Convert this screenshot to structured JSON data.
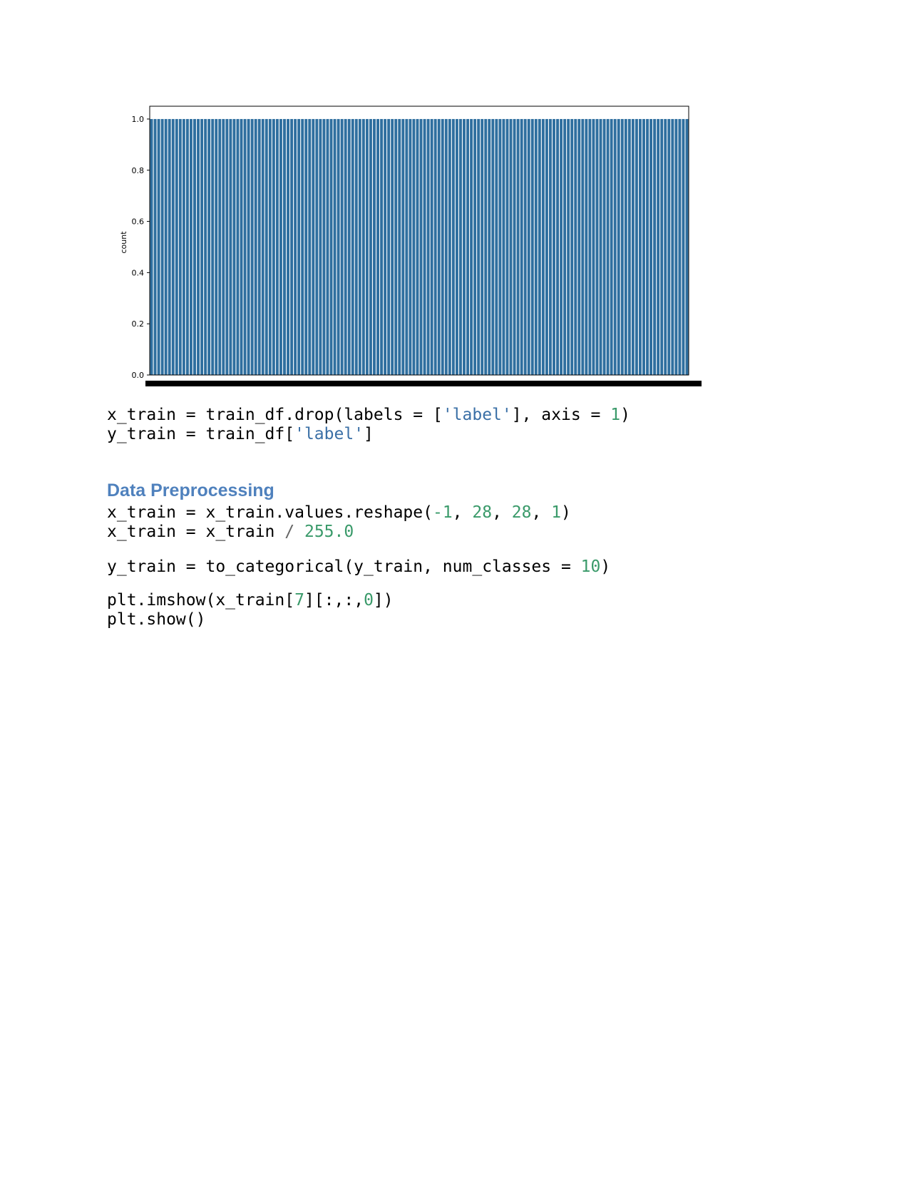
{
  "chart_data": {
    "type": "bar",
    "ylabel": "count",
    "ylim": [
      0,
      1.05
    ],
    "yticks": [
      "0.0",
      "0.2",
      "0.4",
      "0.6",
      "0.8",
      "1.0"
    ],
    "bar_count": 150,
    "values_all": 1.0,
    "bar_color": "#2f6f9f",
    "xtick_labels": "illegible (overlapping)"
  },
  "code_block_1": {
    "line1": {
      "a": "x_train = train_df.drop(labels = [",
      "s": "'label'",
      "b": "], axis = ",
      "n": "1",
      "c": ")"
    },
    "line2": {
      "a": "y_train = train_df[",
      "s": "'label'",
      "b": "]"
    }
  },
  "heading": "Data Preprocessing",
  "code_block_2": {
    "line1": {
      "a": "x_train = x_train.values.reshape(",
      "n1": "-1",
      "s1": ", ",
      "n2": "28",
      "s2": ", ",
      "n3": "28",
      "s3": ", ",
      "n4": "1",
      "c": ")"
    },
    "line2": {
      "a": "x_train = x_train ",
      "op": "/",
      "sp": " ",
      "n": "255.0"
    }
  },
  "code_block_3": {
    "line1": {
      "a": "y_train = to_categorical(y_train, num_classes = ",
      "n": "10",
      "c": ")"
    }
  },
  "code_block_4": {
    "line1": {
      "a": "plt.imshow(x_train[",
      "n1": "7",
      "b": "][:,:,",
      "n2": "0",
      "c": "])"
    },
    "line2": {
      "a": "plt.show()"
    }
  },
  "colors": {
    "heading": "#4f81bd",
    "string": "#3a6fa6",
    "number": "#3a9a6a"
  }
}
